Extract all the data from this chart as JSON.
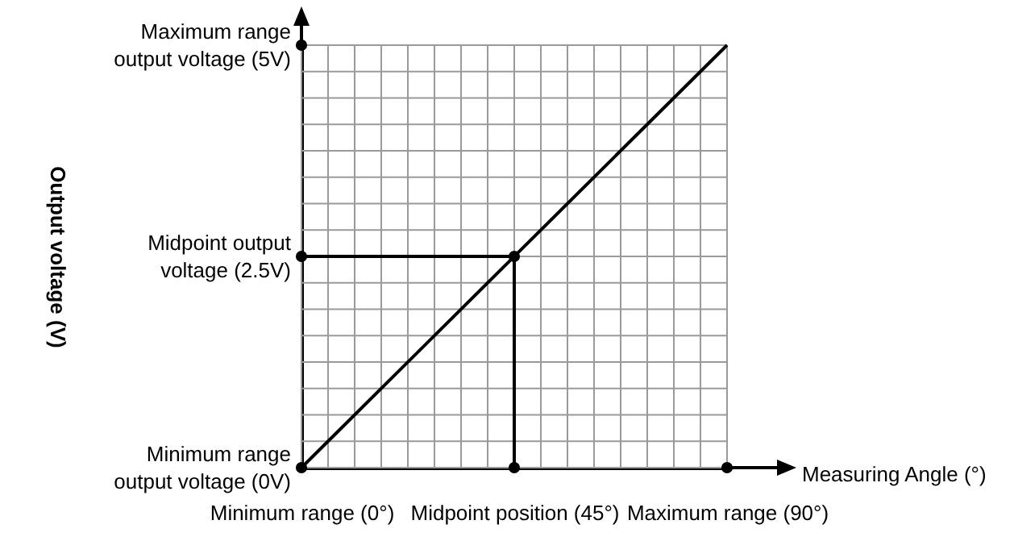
{
  "chart_data": {
    "type": "line",
    "xlabel": "Measuring Angle (°)",
    "ylabel": "Output voltage (V)",
    "xlim": [
      0,
      90
    ],
    "ylim": [
      0,
      5
    ],
    "grid": true,
    "xticks": [
      {
        "value": 0,
        "label": "Minimum range (0°)"
      },
      {
        "value": 5.625,
        "label": null
      },
      {
        "value": 11.25,
        "label": null
      },
      {
        "value": 16.875,
        "label": null
      },
      {
        "value": 22.5,
        "label": null
      },
      {
        "value": 28.125,
        "label": null
      },
      {
        "value": 33.75,
        "label": null
      },
      {
        "value": 39.375,
        "label": null
      },
      {
        "value": 45,
        "label": "Midpoint position (45°)"
      },
      {
        "value": 50.625,
        "label": null
      },
      {
        "value": 56.25,
        "label": null
      },
      {
        "value": 61.875,
        "label": null
      },
      {
        "value": 67.5,
        "label": null
      },
      {
        "value": 73.125,
        "label": null
      },
      {
        "value": 78.75,
        "label": null
      },
      {
        "value": 84.375,
        "label": null
      },
      {
        "value": 90,
        "label": "Maximum range (90°)"
      }
    ],
    "yticks": [
      {
        "value": 0,
        "label": "Minimum range\noutput voltage (0V)"
      },
      {
        "value": 0.3125,
        "label": null
      },
      {
        "value": 0.625,
        "label": null
      },
      {
        "value": 0.9375,
        "label": null
      },
      {
        "value": 1.25,
        "label": null
      },
      {
        "value": 1.5625,
        "label": null
      },
      {
        "value": 1.875,
        "label": null
      },
      {
        "value": 2.1875,
        "label": null
      },
      {
        "value": 2.5,
        "label": "Midpoint output\nvoltage (2.5V)"
      },
      {
        "value": 2.8125,
        "label": null
      },
      {
        "value": 3.125,
        "label": null
      },
      {
        "value": 3.4375,
        "label": null
      },
      {
        "value": 3.75,
        "label": null
      },
      {
        "value": 4.0625,
        "label": null
      },
      {
        "value": 4.375,
        "label": null
      },
      {
        "value": 4.6875,
        "label": null
      },
      {
        "value": 5,
        "label": "Maximum range\noutput voltage (5V)"
      }
    ],
    "series": [
      {
        "type": "line",
        "color": "#000000",
        "x": [
          0,
          90
        ],
        "values": [
          0,
          5
        ]
      },
      {
        "type": "line",
        "color": "#000000",
        "x": [
          0,
          45,
          45
        ],
        "values": [
          2.5,
          2.5,
          0
        ]
      },
      {
        "type": "scatter",
        "color": "#000000",
        "marker": "circle",
        "x": [
          0,
          0,
          0,
          45,
          45,
          90
        ],
        "values": [
          0,
          2.5,
          5,
          2.5,
          0,
          0
        ]
      }
    ]
  }
}
